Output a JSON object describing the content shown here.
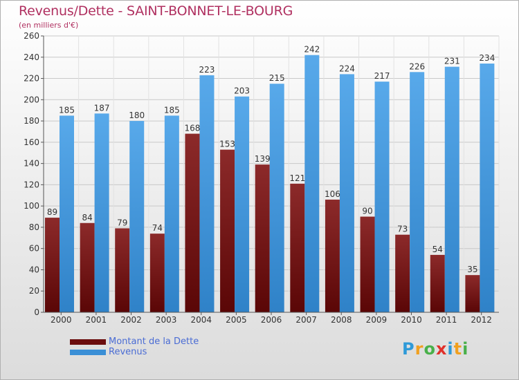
{
  "title": "Revenus/Dette - SAINT-BONNET-LE-BOURG",
  "subtitle": "(en milliers d'€)",
  "colors": {
    "debt": "#6b0d0d",
    "debt_light": "#8c2a2a",
    "revenue": "#3a8fd6",
    "revenue_light": "#58a9ea",
    "grid": "#c8c8c8",
    "text": "#333333"
  },
  "legend": [
    {
      "label": "Montant de la Dette",
      "color": "#6b0d0d"
    },
    {
      "label": "Revenus",
      "color": "#3a8fd6"
    }
  ],
  "logo": {
    "letters": [
      "P",
      "r",
      "o",
      "x",
      "i",
      "t",
      "i"
    ],
    "colors": [
      "#2e9ad8",
      "#f0a020",
      "#49b04a",
      "#e0302a",
      "#2e9ad8",
      "#f0a020",
      "#49b04a"
    ]
  },
  "chart_data": {
    "type": "bar",
    "categories": [
      "2000",
      "2001",
      "2002",
      "2003",
      "2004",
      "2005",
      "2006",
      "2007",
      "2008",
      "2009",
      "2010",
      "2011",
      "2012"
    ],
    "series": [
      {
        "name": "Montant de la Dette",
        "values": [
          89,
          84,
          79,
          74,
          168,
          153,
          139,
          121,
          106,
          90,
          73,
          54,
          35
        ]
      },
      {
        "name": "Revenus",
        "values": [
          185,
          187,
          180,
          185,
          223,
          203,
          215,
          242,
          224,
          217,
          226,
          231,
          234
        ]
      }
    ],
    "ylim": [
      0,
      260
    ],
    "yticks": [
      0,
      20,
      40,
      60,
      80,
      100,
      120,
      140,
      160,
      180,
      200,
      220,
      240,
      260
    ],
    "grid": true,
    "legend_position": "bottom-left"
  }
}
